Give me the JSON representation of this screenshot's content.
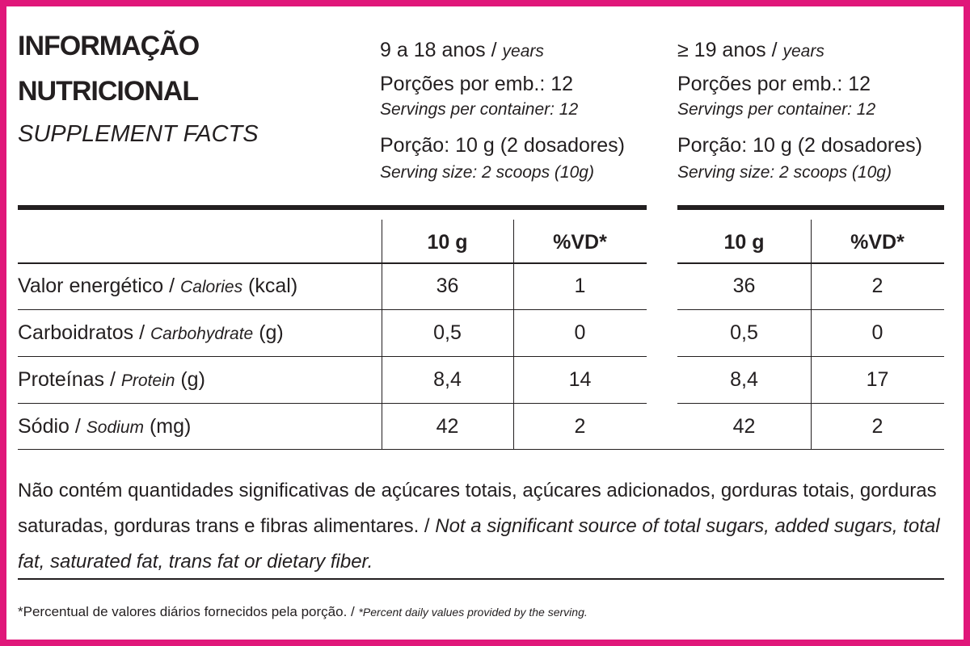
{
  "header": {
    "title_lines": [
      "INFORMAÇÃO",
      "NUTRICIONAL"
    ],
    "subtitle": "SUPPLEMENT FACTS"
  },
  "groups": [
    {
      "age": "9 a 18 anos /",
      "age_en": "years",
      "servings": "Porções por emb.: 12",
      "servings_en": "Servings per container: 12",
      "portion": "Porção: 10 g (2 dosadores)",
      "portion_en": "Serving size: 2 scoops (10g)",
      "columns": [
        "10 g",
        "%VD*"
      ],
      "rows": [
        [
          "36",
          "1"
        ],
        [
          "0,5",
          "0"
        ],
        [
          "8,4",
          "14"
        ],
        [
          "42",
          "2"
        ]
      ]
    },
    {
      "age": "≥ 19 anos /",
      "age_en": "years",
      "servings": "Porções por emb.: 12",
      "servings_en": "Servings per container: 12",
      "portion": "Porção: 10 g (2 dosadores)",
      "portion_en": "Serving size: 2 scoops (10g)",
      "columns": [
        "10 g",
        "%VD*"
      ],
      "rows": [
        [
          "36",
          "2"
        ],
        [
          "0,5",
          "0"
        ],
        [
          "8,4",
          "17"
        ],
        [
          "42",
          "2"
        ]
      ]
    }
  ],
  "nutrients": [
    {
      "pt": "Valor energético /",
      "en": "Calories",
      "unit": "(kcal)"
    },
    {
      "pt": "Carboidratos /",
      "en": "Carbohydrate",
      "unit": "(g)"
    },
    {
      "pt": "Proteínas /",
      "en": "Protein",
      "unit": "(g)"
    },
    {
      "pt": "Sódio /",
      "en": "Sodium",
      "unit": "(mg)"
    }
  ],
  "notes": {
    "pt": "Não contém quantidades significativas de açúcares totais, açúcares adicionados, gorduras totais, gorduras saturadas, gorduras trans e fibras alimentares. /",
    "en": "Not a significant source of total sugars, added sugars, total fat, saturated fat, trans fat or dietary fiber."
  },
  "footnote": {
    "pt": "*Percentual de valores diários fornecidos pela porção. /",
    "en": "*Percent daily values provided by the serving."
  }
}
